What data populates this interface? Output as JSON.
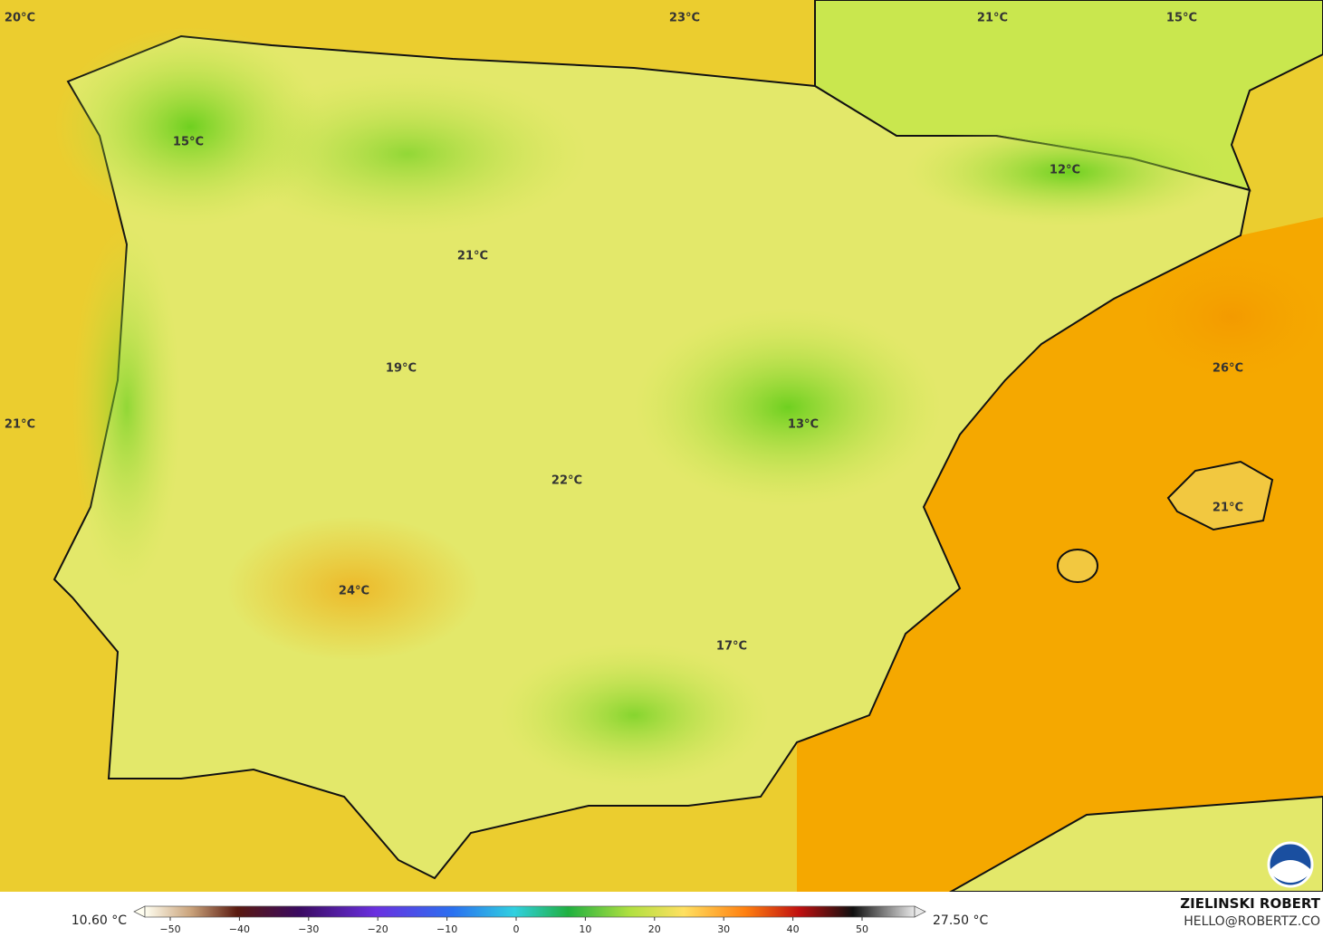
{
  "map": {
    "labels": [
      {
        "text": "20°C"
      },
      {
        "text": "23°C"
      },
      {
        "text": "21°C"
      },
      {
        "text": "15°C"
      },
      {
        "text": "15°C"
      },
      {
        "text": "12°C"
      },
      {
        "text": "21°C"
      },
      {
        "text": "26°C"
      },
      {
        "text": "19°C"
      },
      {
        "text": "21°C"
      },
      {
        "text": "13°C"
      },
      {
        "text": "22°C"
      },
      {
        "text": "21°C"
      },
      {
        "text": "24°C"
      },
      {
        "text": "17°C"
      }
    ]
  },
  "legend": {
    "min_label": "10.60 °C",
    "max_label": "27.50 °C",
    "ticks": [
      "−50",
      "−40",
      "−30",
      "−20",
      "−10",
      "0",
      "10",
      "20",
      "30",
      "40",
      "50"
    ]
  },
  "credit": {
    "author": "ZIELINSKI ROBERT",
    "email": "HELLO@ROBERTZ.CO"
  }
}
